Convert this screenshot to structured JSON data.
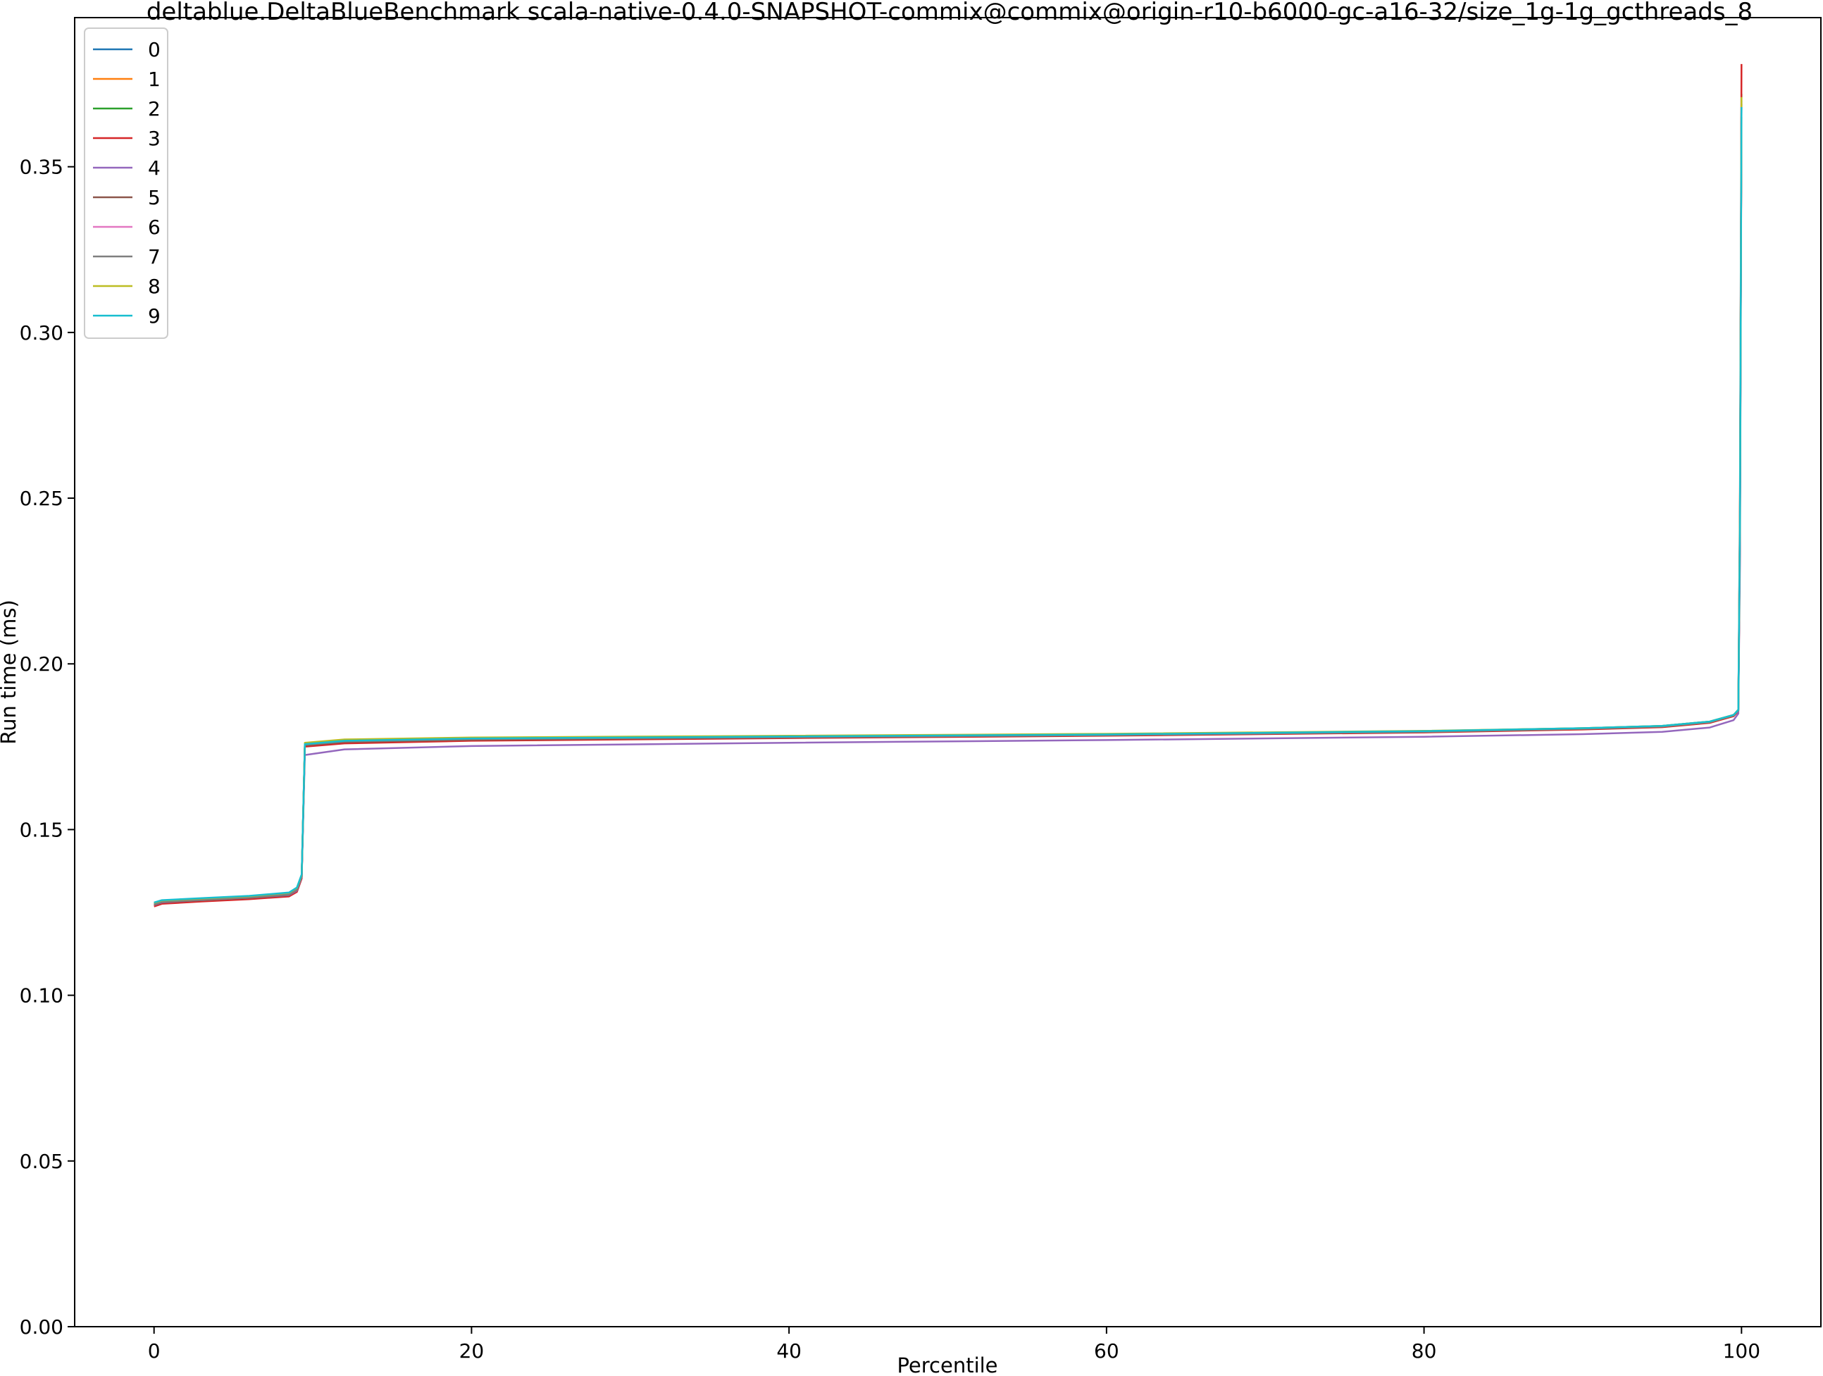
{
  "chart_data": {
    "type": "line",
    "title": "deltablue.DeltaBlueBenchmark scala-native-0.4.0-SNAPSHOT-commix@commix@origin-r10-b6000-gc-a16-32/size_1g-1g_gcthreads_8",
    "xlabel": "Percentile",
    "ylabel": "Run time (ms)",
    "xlim": [
      -5,
      105
    ],
    "ylim": [
      0,
      0.395
    ],
    "xticks": [
      0,
      20,
      40,
      60,
      80,
      100
    ],
    "xtick_labels": [
      "0",
      "20",
      "40",
      "60",
      "80",
      "100"
    ],
    "yticks": [
      0,
      0.05,
      0.1,
      0.15,
      0.2,
      0.25,
      0.3,
      0.35
    ],
    "ytick_labels": [
      "0.00",
      "0.05",
      "0.10",
      "0.15",
      "0.20",
      "0.25",
      "0.30",
      "0.35"
    ],
    "grid": false,
    "legend_position": "upper-left",
    "series": [
      {
        "name": "0",
        "color": "#1f77b4",
        "x": [
          0,
          0.5,
          3,
          6,
          8.5,
          9.0,
          9.3,
          9.5,
          12,
          20,
          40,
          60,
          80,
          90,
          95,
          98,
          99.5,
          99.8,
          99.9,
          100
        ],
        "y": [
          0.1275,
          0.1282,
          0.1288,
          0.1295,
          0.1305,
          0.132,
          0.136,
          0.1755,
          0.1765,
          0.1772,
          0.1778,
          0.1785,
          0.1795,
          0.1805,
          0.1812,
          0.1825,
          0.1845,
          0.186,
          0.24,
          0.37
        ]
      },
      {
        "name": "1",
        "color": "#ff7f0e",
        "x": [
          0,
          0.5,
          3,
          6,
          8.5,
          9.0,
          9.3,
          9.5,
          12,
          20,
          40,
          60,
          80,
          90,
          95,
          98,
          99.5,
          99.8,
          99.9,
          100
        ],
        "y": [
          0.127,
          0.1278,
          0.1285,
          0.1292,
          0.13,
          0.1315,
          0.1355,
          0.1752,
          0.1762,
          0.177,
          0.1777,
          0.1784,
          0.1794,
          0.1803,
          0.181,
          0.1823,
          0.1843,
          0.1858,
          0.235,
          0.365
        ]
      },
      {
        "name": "2",
        "color": "#2ca02c",
        "x": [
          0,
          0.5,
          3,
          6,
          8.5,
          9.0,
          9.3,
          9.5,
          12,
          20,
          40,
          60,
          80,
          90,
          95,
          98,
          99.5,
          99.8,
          99.9,
          100
        ],
        "y": [
          0.1278,
          0.1285,
          0.1291,
          0.1298,
          0.1308,
          0.1323,
          0.1363,
          0.176,
          0.177,
          0.1777,
          0.1782,
          0.1788,
          0.1797,
          0.1806,
          0.1813,
          0.1826,
          0.1846,
          0.1862,
          0.245,
          0.372
        ]
      },
      {
        "name": "3",
        "color": "#d62728",
        "x": [
          0,
          0.5,
          3,
          6,
          8.5,
          9.0,
          9.3,
          9.5,
          12,
          20,
          40,
          60,
          80,
          90,
          95,
          98,
          99.5,
          99.8,
          99.9,
          100
        ],
        "y": [
          0.1268,
          0.1276,
          0.1283,
          0.129,
          0.1298,
          0.1312,
          0.1352,
          0.175,
          0.176,
          0.1768,
          0.1776,
          0.1783,
          0.1793,
          0.1802,
          0.1809,
          0.1822,
          0.1842,
          0.1857,
          0.25,
          0.381
        ]
      },
      {
        "name": "4",
        "color": "#9467bd",
        "x": [
          0,
          0.5,
          3,
          6,
          8.5,
          9.0,
          9.3,
          9.5,
          12,
          20,
          40,
          60,
          80,
          90,
          95,
          98,
          99.5,
          99.8,
          99.9,
          100
        ],
        "y": [
          0.1272,
          0.128,
          0.1287,
          0.1294,
          0.1302,
          0.1316,
          0.1356,
          0.1725,
          0.1742,
          0.1752,
          0.1762,
          0.177,
          0.178,
          0.1788,
          0.1795,
          0.1808,
          0.183,
          0.185,
          0.23,
          0.368
        ]
      },
      {
        "name": "5",
        "color": "#8c564b",
        "x": [
          0,
          0.5,
          3,
          6,
          8.5,
          9.0,
          9.3,
          9.5,
          12,
          20,
          40,
          60,
          80,
          90,
          95,
          98,
          99.5,
          99.8,
          99.9,
          100
        ],
        "y": [
          0.1273,
          0.1281,
          0.1287,
          0.1294,
          0.1303,
          0.1318,
          0.1358,
          0.1754,
          0.1764,
          0.1771,
          0.1778,
          0.1785,
          0.1795,
          0.1804,
          0.1811,
          0.1824,
          0.1844,
          0.1859,
          0.238,
          0.369
        ]
      },
      {
        "name": "6",
        "color": "#e377c2",
        "x": [
          0,
          0.5,
          3,
          6,
          8.5,
          9.0,
          9.3,
          9.5,
          12,
          20,
          40,
          60,
          80,
          90,
          95,
          98,
          99.5,
          99.8,
          99.9,
          100
        ],
        "y": [
          0.1276,
          0.1283,
          0.1289,
          0.1296,
          0.1306,
          0.1321,
          0.1361,
          0.1757,
          0.1767,
          0.1774,
          0.178,
          0.1786,
          0.1796,
          0.1805,
          0.1812,
          0.1825,
          0.1845,
          0.186,
          0.242,
          0.37
        ]
      },
      {
        "name": "7",
        "color": "#7f7f7f",
        "x": [
          0,
          0.5,
          3,
          6,
          8.5,
          9.0,
          9.3,
          9.5,
          12,
          20,
          40,
          60,
          80,
          90,
          95,
          98,
          99.5,
          99.8,
          99.9,
          100
        ],
        "y": [
          0.1274,
          0.1282,
          0.1288,
          0.1295,
          0.1304,
          0.1319,
          0.1359,
          0.1756,
          0.1766,
          0.1773,
          0.1779,
          0.1785,
          0.1795,
          0.1804,
          0.1811,
          0.1824,
          0.1844,
          0.1859,
          0.24,
          0.369
        ]
      },
      {
        "name": "8",
        "color": "#bcbd22",
        "x": [
          0,
          0.5,
          3,
          6,
          8.5,
          9.0,
          9.3,
          9.5,
          12,
          20,
          40,
          60,
          80,
          90,
          95,
          98,
          99.5,
          99.8,
          99.9,
          100
        ],
        "y": [
          0.1279,
          0.1286,
          0.1292,
          0.1299,
          0.1309,
          0.1324,
          0.1364,
          0.1762,
          0.1772,
          0.1778,
          0.1783,
          0.1789,
          0.1798,
          0.1806,
          0.1813,
          0.1826,
          0.1846,
          0.1861,
          0.245,
          0.371
        ]
      },
      {
        "name": "9",
        "color": "#17becf",
        "x": [
          0,
          0.5,
          3,
          6,
          8.5,
          9.0,
          9.3,
          9.5,
          12,
          20,
          40,
          60,
          80,
          90,
          95,
          98,
          99.5,
          99.8,
          99.9,
          100
        ],
        "y": [
          0.128,
          0.1287,
          0.1293,
          0.13,
          0.131,
          0.1325,
          0.1365,
          0.1758,
          0.1768,
          0.1775,
          0.1781,
          0.1787,
          0.1797,
          0.1806,
          0.1813,
          0.1826,
          0.1846,
          0.1861,
          0.243,
          0.368
        ]
      }
    ]
  }
}
